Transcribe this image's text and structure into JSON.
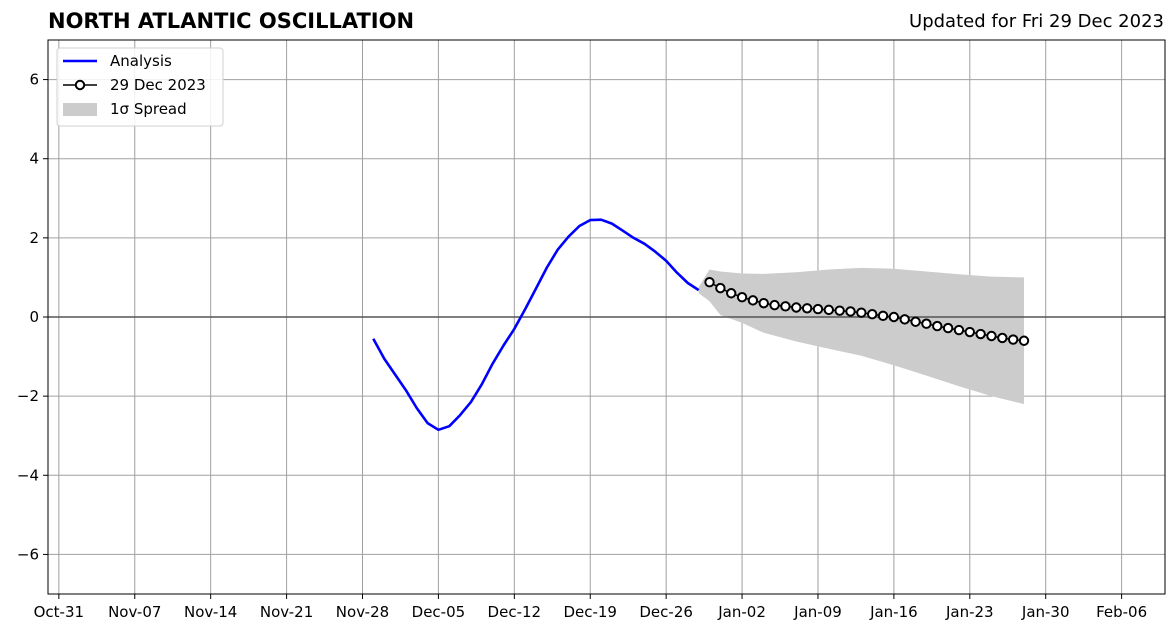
{
  "header": {
    "title": "NORTH ATLANTIC OSCILLATION",
    "updated": "Updated for Fri 29 Dec 2023"
  },
  "chart_data": {
    "type": "line",
    "title": "NORTH ATLANTIC OSCILLATION",
    "xlabel": "",
    "ylabel": "",
    "x_axis": {
      "type": "date",
      "range": [
        "2023-10-30",
        "2024-02-10"
      ],
      "ticks": [
        {
          "date": "2023-10-31",
          "label": "Oct-31"
        },
        {
          "date": "2023-11-07",
          "label": "Nov-07"
        },
        {
          "date": "2023-11-14",
          "label": "Nov-14"
        },
        {
          "date": "2023-11-21",
          "label": "Nov-21"
        },
        {
          "date": "2023-11-28",
          "label": "Nov-28"
        },
        {
          "date": "2023-12-05",
          "label": "Dec-05"
        },
        {
          "date": "2023-12-12",
          "label": "Dec-12"
        },
        {
          "date": "2023-12-19",
          "label": "Dec-19"
        },
        {
          "date": "2023-12-26",
          "label": "Dec-26"
        },
        {
          "date": "2024-01-02",
          "label": "Jan-02"
        },
        {
          "date": "2024-01-09",
          "label": "Jan-09"
        },
        {
          "date": "2024-01-16",
          "label": "Jan-16"
        },
        {
          "date": "2024-01-23",
          "label": "Jan-23"
        },
        {
          "date": "2024-01-30",
          "label": "Jan-30"
        },
        {
          "date": "2024-02-06",
          "label": "Feb-06"
        }
      ]
    },
    "y_axis": {
      "range": [
        -7,
        7
      ],
      "ticks": [
        -6,
        -4,
        -2,
        0,
        2,
        4,
        6
      ],
      "tick_labels": [
        "−6",
        "−4",
        "−2",
        "0",
        "2",
        "4",
        "6"
      ]
    },
    "grid": true,
    "zero_line": true,
    "legend": {
      "placement": "top-left",
      "entries": [
        {
          "label": "Analysis",
          "kind": "line",
          "color": "#0000ff"
        },
        {
          "label": "29 Dec 2023",
          "kind": "line-marker",
          "color": "#000000"
        },
        {
          "label": "1σ Spread",
          "kind": "patch",
          "color": "#cccccc"
        }
      ]
    },
    "series": [
      {
        "name": "Analysis",
        "color": "#0000ff",
        "x": [
          "2023-11-29",
          "2023-11-30",
          "2023-12-01",
          "2023-12-02",
          "2023-12-03",
          "2023-12-04",
          "2023-12-05",
          "2023-12-06",
          "2023-12-07",
          "2023-12-08",
          "2023-12-09",
          "2023-12-10",
          "2023-12-11",
          "2023-12-12",
          "2023-12-13",
          "2023-12-14",
          "2023-12-15",
          "2023-12-16",
          "2023-12-17",
          "2023-12-18",
          "2023-12-19",
          "2023-12-20",
          "2023-12-21",
          "2023-12-22",
          "2023-12-23",
          "2023-12-24",
          "2023-12-25",
          "2023-12-26",
          "2023-12-27",
          "2023-12-28",
          "2023-12-29"
        ],
        "y": [
          -0.55,
          -1.05,
          -1.45,
          -1.85,
          -2.3,
          -2.68,
          -2.85,
          -2.76,
          -2.48,
          -2.15,
          -1.7,
          -1.18,
          -0.72,
          -0.3,
          0.2,
          0.72,
          1.25,
          1.7,
          2.03,
          2.3,
          2.45,
          2.46,
          2.36,
          2.18,
          2.0,
          1.85,
          1.65,
          1.42,
          1.12,
          0.86,
          0.68
        ]
      },
      {
        "name": "29 Dec 2023",
        "color": "#000000",
        "x": [
          "2023-12-30",
          "2023-12-31",
          "2024-01-01",
          "2024-01-02",
          "2024-01-03",
          "2024-01-04",
          "2024-01-05",
          "2024-01-06",
          "2024-01-07",
          "2024-01-08",
          "2024-01-09",
          "2024-01-10",
          "2024-01-11",
          "2024-01-12",
          "2024-01-13",
          "2024-01-14",
          "2024-01-15",
          "2024-01-16",
          "2024-01-17",
          "2024-01-18",
          "2024-01-19",
          "2024-01-20",
          "2024-01-21",
          "2024-01-22",
          "2024-01-23",
          "2024-01-24",
          "2024-01-25",
          "2024-01-26",
          "2024-01-27",
          "2024-01-28"
        ],
        "y": [
          0.88,
          0.73,
          0.6,
          0.5,
          0.42,
          0.35,
          0.3,
          0.27,
          0.24,
          0.22,
          0.2,
          0.18,
          0.16,
          0.14,
          0.11,
          0.07,
          0.03,
          0.0,
          -0.06,
          -0.12,
          -0.17,
          -0.23,
          -0.28,
          -0.33,
          -0.38,
          -0.43,
          -0.48,
          -0.53,
          -0.57,
          -0.6
        ]
      }
    ],
    "spread": {
      "name": "1σ Spread",
      "color": "#cccccc",
      "x": [
        "2023-12-29",
        "2023-12-30",
        "2023-12-31",
        "2024-01-02",
        "2024-01-04",
        "2024-01-07",
        "2024-01-10",
        "2024-01-13",
        "2024-01-16",
        "2024-01-19",
        "2024-01-22",
        "2024-01-25",
        "2024-01-28"
      ],
      "upper": [
        0.75,
        1.2,
        1.15,
        1.1,
        1.09,
        1.13,
        1.2,
        1.24,
        1.22,
        1.15,
        1.08,
        1.02,
        1.0
      ],
      "lower": [
        0.6,
        0.4,
        0.05,
        -0.15,
        -0.4,
        -0.62,
        -0.8,
        -0.98,
        -1.22,
        -1.48,
        -1.75,
        -2.0,
        -2.2
      ]
    }
  }
}
